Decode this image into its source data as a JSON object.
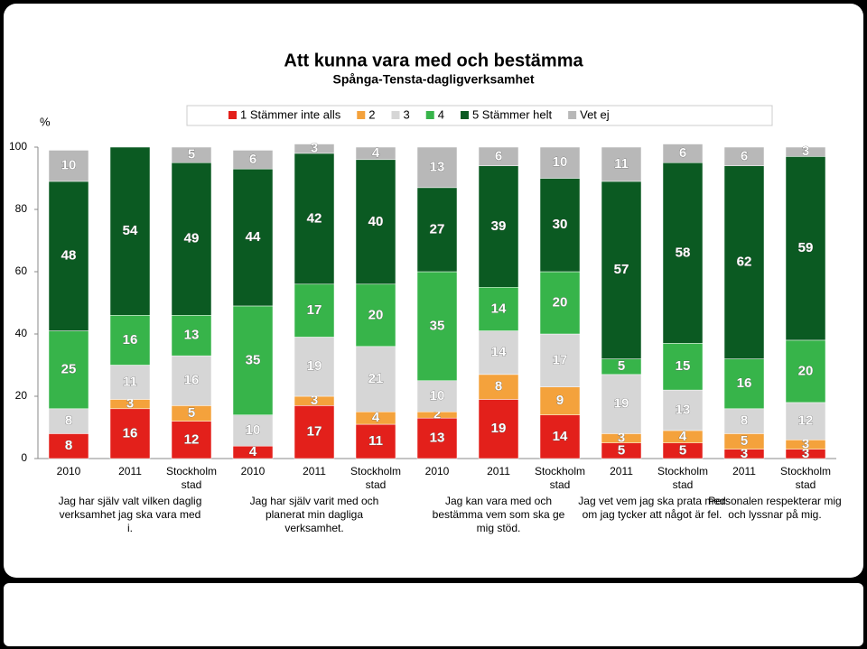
{
  "chart_data": {
    "type": "stacked-bar",
    "title": "Att kunna vara med och bestämma",
    "subtitle": "Spånga-Tensta-dagligverksamhet",
    "y_label": "%",
    "ylim": [
      0,
      100
    ],
    "yticks": [
      0,
      20,
      40,
      60,
      80,
      100
    ],
    "grid": false,
    "legend_position": "top",
    "groups": [
      {
        "label": "Jag har själv valt vilken daglig verksamhet jag ska vara med i.",
        "categories": [
          "2010",
          "2011",
          "Stockholm stad"
        ]
      },
      {
        "label": "Jag har själv varit med och planerat min dagliga verksamhet.",
        "categories": [
          "2010",
          "2011",
          "Stockholm stad"
        ]
      },
      {
        "label": "Jag kan vara med och bestämma vem som ska ge mig stöd.",
        "categories": [
          "2010",
          "2011",
          "Stockholm stad"
        ]
      },
      {
        "label": "Jag vet vem jag ska prata med om jag tycker att något är fel.",
        "categories": [
          "2011",
          "Stockholm stad"
        ]
      },
      {
        "label": "Personalen respekterar mig och lyssnar på mig.",
        "categories": [
          "2011",
          "Stockholm stad"
        ]
      }
    ],
    "series": [
      {
        "name": "1 Stämmer inte alls",
        "color": "#e3201b",
        "values": [
          8,
          16,
          12,
          4,
          17,
          11,
          13,
          19,
          14,
          5,
          5,
          3,
          3
        ]
      },
      {
        "name": "2",
        "color": "#f4a23c",
        "values": [
          null,
          3,
          5,
          null,
          3,
          4,
          2,
          8,
          9,
          3,
          4,
          5,
          3
        ]
      },
      {
        "name": "3",
        "color": "#d6d6d6",
        "values": [
          8,
          11,
          16,
          10,
          19,
          21,
          10,
          14,
          17,
          19,
          13,
          8,
          12
        ]
      },
      {
        "name": "4",
        "color": "#37b44a",
        "values": [
          25,
          16,
          13,
          35,
          17,
          20,
          35,
          14,
          20,
          5,
          15,
          16,
          20
        ]
      },
      {
        "name": "5 Stämmer helt",
        "color": "#0b5a22",
        "values": [
          48,
          54,
          49,
          44,
          42,
          40,
          27,
          39,
          30,
          57,
          58,
          62,
          59
        ]
      },
      {
        "name": "Vet ej",
        "color": "#b8b8b8",
        "values": [
          10,
          null,
          5,
          6,
          3,
          4,
          13,
          6,
          10,
          11,
          6,
          6,
          3
        ]
      }
    ]
  }
}
